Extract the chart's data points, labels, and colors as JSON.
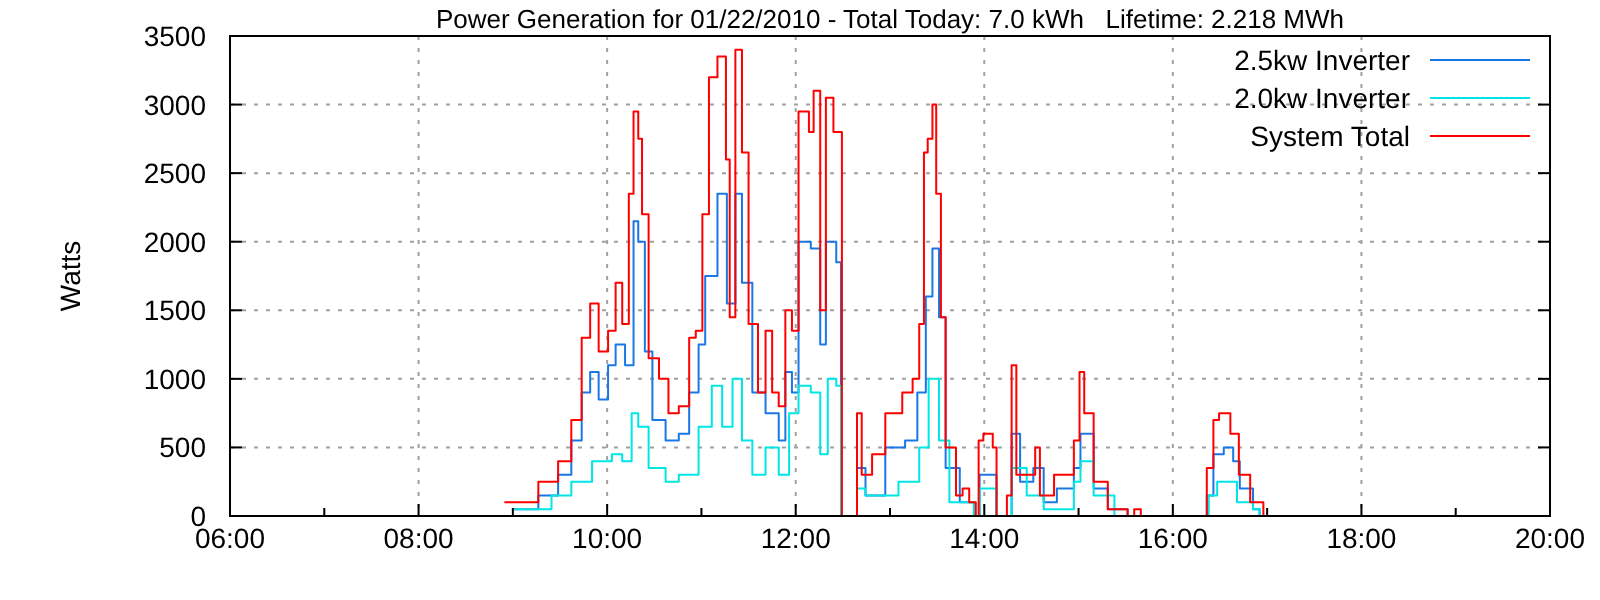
{
  "chart_data": {
    "type": "step",
    "title": "Power Generation for 01/22/2010 - Total Today: 7.0 kWh   Lifetime: 2.218 MWh",
    "ylabel": "Watts",
    "xlim": [
      6,
      20
    ],
    "ylim": [
      0,
      3500
    ],
    "xticks": [
      {
        "value": 6,
        "label": "06:00"
      },
      {
        "value": 7,
        "label": null
      },
      {
        "value": 8,
        "label": "08:00"
      },
      {
        "value": 9,
        "label": null
      },
      {
        "value": 10,
        "label": "10:00"
      },
      {
        "value": 11,
        "label": null
      },
      {
        "value": 12,
        "label": "12:00"
      },
      {
        "value": 13,
        "label": null
      },
      {
        "value": 14,
        "label": "14:00"
      },
      {
        "value": 15,
        "label": null
      },
      {
        "value": 16,
        "label": "16:00"
      },
      {
        "value": 17,
        "label": null
      },
      {
        "value": 18,
        "label": "18:00"
      },
      {
        "value": 19,
        "label": null
      },
      {
        "value": 20,
        "label": "20:00"
      }
    ],
    "yticks": [
      0,
      500,
      1000,
      1500,
      2000,
      2500,
      3000,
      3500
    ],
    "grid": true,
    "legend": "top right",
    "line_style": "solid",
    "marker": "none",
    "series": [
      {
        "name": "2.5kw Inverter",
        "color": "#1a78e6",
        "x": [
          8.99,
          9.27,
          9.48,
          9.62,
          9.73,
          9.82,
          9.91,
          10.01,
          10.09,
          10.19,
          10.28,
          10.33,
          10.4,
          10.48,
          10.62,
          10.76,
          10.87,
          10.97,
          11.04,
          11.17,
          11.27,
          11.36,
          11.43,
          11.54,
          11.68,
          11.82,
          11.89,
          11.96,
          12.03,
          12.16,
          12.26,
          12.32,
          12.43,
          12.48,
          12.56,
          12.65,
          12.74,
          12.95,
          13.16,
          13.29,
          13.38,
          13.45,
          13.52,
          13.59,
          13.74,
          13.89,
          13.95,
          14.09,
          14.13,
          14.29,
          14.38,
          14.52,
          14.63,
          14.77,
          14.95,
          15.02,
          15.16,
          15.31,
          15.52,
          16.31,
          16.36,
          16.43,
          16.54,
          16.64,
          16.71,
          16.85,
          16.92
        ],
        "values": [
          50,
          150,
          300,
          550,
          900,
          1050,
          850,
          1100,
          1250,
          1100,
          2150,
          2000,
          1200,
          700,
          550,
          600,
          900,
          1250,
          1750,
          2350,
          1550,
          2350,
          1700,
          900,
          750,
          550,
          1050,
          900,
          2000,
          1950,
          1250,
          2000,
          1850,
          0,
          0,
          350,
          150,
          500,
          550,
          900,
          1600,
          1950,
          1450,
          350,
          100,
          0,
          300,
          300,
          0,
          600,
          250,
          350,
          100,
          200,
          350,
          600,
          200,
          50,
          0,
          0,
          150,
          450,
          500,
          400,
          200,
          50,
          0
        ]
      },
      {
        "name": "2.0kw Inverter",
        "color": "#00e5e5",
        "x": [
          8.99,
          9.41,
          9.62,
          9.84,
          10.05,
          10.16,
          10.26,
          10.33,
          10.44,
          10.62,
          10.76,
          10.97,
          11.11,
          11.22,
          11.33,
          11.43,
          11.54,
          11.68,
          11.82,
          11.93,
          12.03,
          12.16,
          12.26,
          12.34,
          12.43,
          12.48,
          12.56,
          12.65,
          12.74,
          13.09,
          13.31,
          13.41,
          13.52,
          13.63,
          13.89,
          13.95,
          14.13,
          14.29,
          14.45,
          14.63,
          14.95,
          15.02,
          15.16,
          15.38,
          16.31,
          16.38,
          16.47,
          16.57,
          16.68,
          16.85,
          16.92
        ],
        "values": [
          50,
          150,
          250,
          400,
          450,
          400,
          750,
          650,
          350,
          250,
          300,
          650,
          950,
          650,
          1000,
          550,
          300,
          500,
          300,
          750,
          950,
          900,
          450,
          1000,
          950,
          0,
          0,
          200,
          150,
          250,
          500,
          1000,
          550,
          100,
          0,
          200,
          0,
          350,
          150,
          50,
          250,
          400,
          150,
          0,
          0,
          150,
          250,
          250,
          100,
          50,
          0
        ]
      },
      {
        "name": "System Total",
        "color": "#ff0000",
        "x": [
          8.91,
          9.27,
          9.48,
          9.62,
          9.73,
          9.82,
          9.91,
          10.01,
          10.09,
          10.16,
          10.23,
          10.28,
          10.33,
          10.37,
          10.44,
          10.55,
          10.65,
          10.76,
          10.87,
          10.94,
          11.01,
          11.08,
          11.17,
          11.26,
          11.3,
          11.36,
          11.43,
          11.5,
          11.6,
          11.68,
          11.75,
          11.82,
          11.89,
          11.96,
          12.03,
          12.14,
          12.19,
          12.26,
          12.32,
          12.4,
          12.45,
          12.49,
          12.56,
          12.65,
          12.7,
          12.81,
          12.95,
          13.02,
          13.13,
          13.24,
          13.31,
          13.36,
          13.4,
          13.45,
          13.49,
          13.54,
          13.59,
          13.7,
          13.77,
          13.84,
          13.91,
          13.94,
          13.99,
          14.09,
          14.13,
          14.24,
          14.29,
          14.34,
          14.45,
          14.54,
          14.59,
          14.74,
          14.84,
          14.95,
          15.01,
          15.06,
          15.16,
          15.31,
          15.52,
          15.59,
          15.66,
          16.31,
          16.36,
          16.43,
          16.49,
          16.55,
          16.61,
          16.7,
          16.82,
          16.96
        ],
        "values": [
          100,
          250,
          400,
          700,
          1300,
          1550,
          1200,
          1350,
          1700,
          1400,
          2350,
          2950,
          2750,
          2200,
          1150,
          1000,
          750,
          800,
          1300,
          1350,
          2200,
          3200,
          3350,
          2600,
          1450,
          3400,
          2650,
          1400,
          900,
          1350,
          900,
          800,
          1500,
          1350,
          2950,
          2800,
          3100,
          1500,
          3050,
          2800,
          2800,
          0,
          0,
          750,
          300,
          450,
          750,
          750,
          900,
          1000,
          1400,
          2650,
          2750,
          3000,
          2350,
          1450,
          500,
          150,
          200,
          100,
          0,
          550,
          600,
          500,
          0,
          150,
          1100,
          300,
          300,
          500,
          150,
          300,
          300,
          550,
          1050,
          750,
          250,
          50,
          0,
          50,
          0,
          0,
          350,
          700,
          750,
          750,
          600,
          300,
          100,
          0
        ]
      }
    ]
  }
}
